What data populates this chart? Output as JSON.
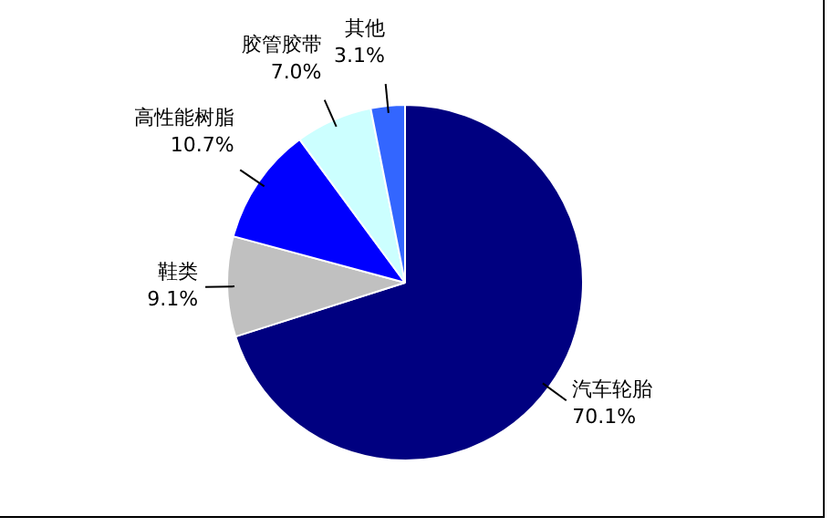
{
  "chart_data": {
    "type": "pie",
    "categories": [
      "汽车轮胎",
      "鞋类",
      "高性能树脂",
      "胶管胶带",
      "其他"
    ],
    "values": [
      70.1,
      9.1,
      10.7,
      7.0,
      3.1
    ],
    "value_labels": [
      "70.1%",
      "9.1%",
      "10.7%",
      "7.0%",
      "3.1%"
    ],
    "colors": [
      "#000080",
      "#c0c0c0",
      "#0000ff",
      "#ccffff",
      "#3366ff"
    ],
    "legend": false
  }
}
